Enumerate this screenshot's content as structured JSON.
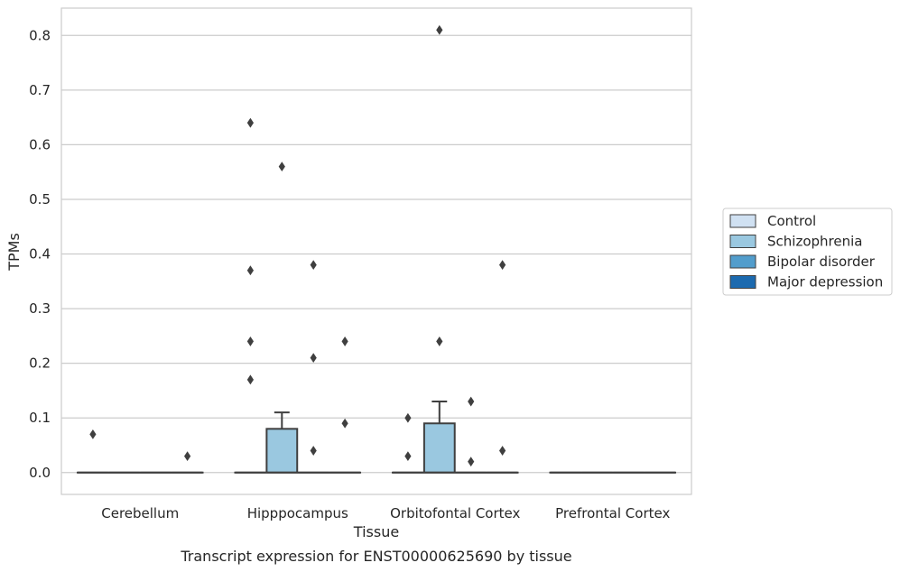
{
  "chart_data": {
    "type": "box",
    "title": "",
    "xlabel": "Tissue",
    "ylabel": "TPMs",
    "caption": "Transcript expression for ENST00000625690 by tissue",
    "ylim": [
      -0.04,
      0.85
    ],
    "yticks": [
      0.0,
      0.1,
      0.2,
      0.3,
      0.4,
      0.5,
      0.6,
      0.7,
      0.8
    ],
    "ytick_labels": [
      "0.0",
      "0.1",
      "0.2",
      "0.3",
      "0.4",
      "0.5",
      "0.6",
      "0.7",
      "0.8"
    ],
    "grid": true,
    "legend_position": "right",
    "categories": [
      "Cerebellum",
      "Hipppocampus",
      "Orbitofontal Cortex",
      "Prefrontal Cortex"
    ],
    "series": [
      {
        "name": "Control",
        "color": "#d0e1f2",
        "boxes": [
          {
            "min": 0.0,
            "q1": 0.0,
            "median": 0.0,
            "q3": 0.0,
            "max": 0.0,
            "outliers": [
              0.07
            ]
          },
          {
            "min": 0.0,
            "q1": 0.0,
            "median": 0.0,
            "q3": 0.0,
            "max": 0.0,
            "outliers": [
              0.37,
              0.24,
              0.17,
              0.64
            ]
          },
          {
            "min": 0.0,
            "q1": 0.0,
            "median": 0.0,
            "q3": 0.0,
            "max": 0.0,
            "outliers": [
              0.1,
              0.03
            ]
          },
          {
            "min": 0.0,
            "q1": 0.0,
            "median": 0.0,
            "q3": 0.0,
            "max": 0.0,
            "outliers": []
          }
        ]
      },
      {
        "name": "Schizophrenia",
        "color": "#9ac8e0",
        "boxes": [
          {
            "min": 0.0,
            "q1": 0.0,
            "median": 0.0,
            "q3": 0.0,
            "max": 0.0,
            "outliers": []
          },
          {
            "min": 0.0,
            "q1": 0.0,
            "median": 0.0,
            "q3": 0.08,
            "max": 0.11,
            "outliers": [
              0.56
            ]
          },
          {
            "min": 0.0,
            "q1": 0.0,
            "median": 0.0,
            "q3": 0.09,
            "max": 0.13,
            "outliers": [
              0.81,
              0.24
            ]
          },
          {
            "min": 0.0,
            "q1": 0.0,
            "median": 0.0,
            "q3": 0.0,
            "max": 0.0,
            "outliers": []
          }
        ]
      },
      {
        "name": "Bipolar disorder",
        "color": "#529dcc",
        "boxes": [
          {
            "min": 0.0,
            "q1": 0.0,
            "median": 0.0,
            "q3": 0.0,
            "max": 0.0,
            "outliers": []
          },
          {
            "min": 0.0,
            "q1": 0.0,
            "median": 0.0,
            "q3": 0.0,
            "max": 0.0,
            "outliers": [
              0.38,
              0.21,
              0.04
            ]
          },
          {
            "min": 0.0,
            "q1": 0.0,
            "median": 0.0,
            "q3": 0.0,
            "max": 0.0,
            "outliers": [
              0.13,
              0.02
            ]
          },
          {
            "min": 0.0,
            "q1": 0.0,
            "median": 0.0,
            "q3": 0.0,
            "max": 0.0,
            "outliers": []
          }
        ]
      },
      {
        "name": "Major depression",
        "color": "#1c6aaf",
        "boxes": [
          {
            "min": 0.0,
            "q1": 0.0,
            "median": 0.0,
            "q3": 0.0,
            "max": 0.0,
            "outliers": [
              0.03
            ]
          },
          {
            "min": 0.0,
            "q1": 0.0,
            "median": 0.0,
            "q3": 0.0,
            "max": 0.0,
            "outliers": [
              0.24,
              0.09
            ]
          },
          {
            "min": 0.0,
            "q1": 0.0,
            "median": 0.0,
            "q3": 0.0,
            "max": 0.0,
            "outliers": [
              0.38,
              0.04
            ]
          },
          {
            "min": 0.0,
            "q1": 0.0,
            "median": 0.0,
            "q3": 0.0,
            "max": 0.0,
            "outliers": []
          }
        ]
      }
    ]
  }
}
